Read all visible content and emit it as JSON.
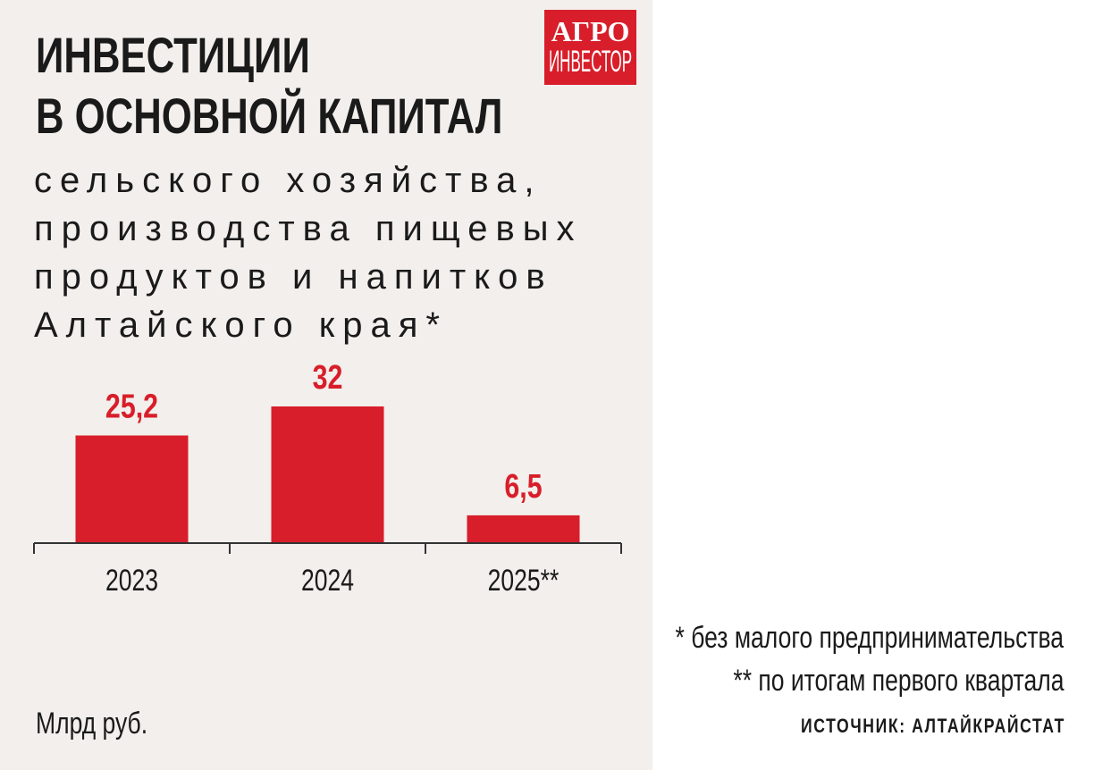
{
  "logo": {
    "line1": "АГРО",
    "line2": "ИНВЕСТОР"
  },
  "chart_data": {
    "type": "bar",
    "title": "ИНВЕСТИЦИИ В ОСНОВНОЙ КАПИТАЛ",
    "title_lines": [
      "ИНВЕСТИЦИИ",
      "В ОСНОВНОЙ КАПИТАЛ"
    ],
    "subtitle_lines": [
      "сельского хозяйства,",
      "производства пищевых",
      "продуктов и напитков",
      "Алтайского края*"
    ],
    "categories": [
      "2023",
      "2024",
      "2025**"
    ],
    "values": [
      25.2,
      32,
      6.5
    ],
    "value_labels": [
      "25,2",
      "32",
      "6,5"
    ],
    "ylim": [
      0,
      32
    ],
    "color": "#d81e2a",
    "grid": false,
    "unit": "Млрд руб.",
    "notes": [
      "* без малого предпринимательства",
      "** по итогам первого квартала"
    ],
    "source": "ИСТОЧНИК: АЛТАЙКРАЙСТАТ"
  }
}
